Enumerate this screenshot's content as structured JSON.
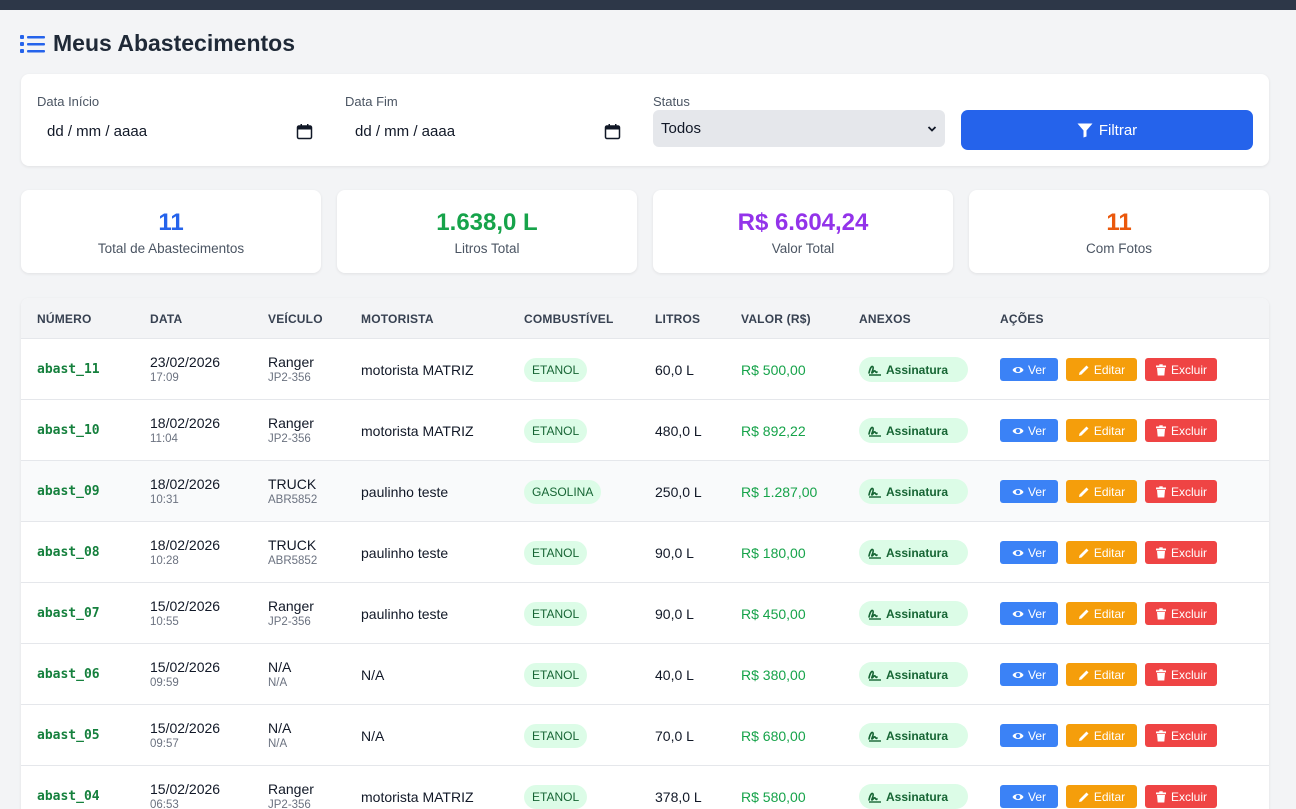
{
  "page": {
    "title": "Meus Abastecimentos"
  },
  "filters": {
    "start_label": "Data Início",
    "start_value": "dd / mm / aaaa",
    "end_label": "Data Fim",
    "end_value": "dd / mm / aaaa",
    "status_label": "Status",
    "status_value": "Todos",
    "filter_button": "Filtrar"
  },
  "stats": [
    {
      "value": "11",
      "label": "Total de Abastecimentos",
      "color": "#2563eb"
    },
    {
      "value": "1.638,0 L",
      "label": "Litros Total",
      "color": "#16a34a"
    },
    {
      "value": "R$ 6.604,24",
      "label": "Valor Total",
      "color": "#9333ea"
    },
    {
      "value": "11",
      "label": "Com Fotos",
      "color": "#ea580c"
    }
  ],
  "table": {
    "headers": [
      "NÚMERO",
      "DATA",
      "VEÍCULO",
      "MOTORISTA",
      "COMBUSTÍVEL",
      "LITROS",
      "VALOR (R$)",
      "ANEXOS",
      "AÇÕES"
    ],
    "rows": [
      {
        "numero": "abast_11",
        "data": "23/02/2026",
        "hora": "17:09",
        "veiculo": "Ranger",
        "placa": "JP2-356",
        "motorista": "motorista MATRIZ",
        "combustivel": "ETANOL",
        "litros": "60,0 L",
        "valor": "R$ 500,00",
        "anexo": "Assinatura",
        "ver": "Ver",
        "editar": "Editar",
        "excluir": "Excluir"
      },
      {
        "numero": "abast_10",
        "data": "18/02/2026",
        "hora": "11:04",
        "veiculo": "Ranger",
        "placa": "JP2-356",
        "motorista": "motorista MATRIZ",
        "combustivel": "ETANOL",
        "litros": "480,0 L",
        "valor": "R$ 892,22",
        "anexo": "Assinatura",
        "ver": "Ver",
        "editar": "Editar",
        "excluir": "Excluir"
      },
      {
        "numero": "abast_09",
        "data": "18/02/2026",
        "hora": "10:31",
        "veiculo": "TRUCK",
        "placa": "ABR5852",
        "motorista": "paulinho teste",
        "combustivel": "GASOLINA",
        "litros": "250,0 L",
        "valor": "R$ 1.287,00",
        "anexo": "Assinatura",
        "ver": "Ver",
        "editar": "Editar",
        "excluir": "Excluir"
      },
      {
        "numero": "abast_08",
        "data": "18/02/2026",
        "hora": "10:28",
        "veiculo": "TRUCK",
        "placa": "ABR5852",
        "motorista": "paulinho teste",
        "combustivel": "ETANOL",
        "litros": "90,0 L",
        "valor": "R$ 180,00",
        "anexo": "Assinatura",
        "ver": "Ver",
        "editar": "Editar",
        "excluir": "Excluir"
      },
      {
        "numero": "abast_07",
        "data": "15/02/2026",
        "hora": "10:55",
        "veiculo": "Ranger",
        "placa": "JP2-356",
        "motorista": "paulinho teste",
        "combustivel": "ETANOL",
        "litros": "90,0 L",
        "valor": "R$ 450,00",
        "anexo": "Assinatura",
        "ver": "Ver",
        "editar": "Editar",
        "excluir": "Excluir"
      },
      {
        "numero": "abast_06",
        "data": "15/02/2026",
        "hora": "09:59",
        "veiculo": "N/A",
        "placa": "N/A",
        "motorista": "N/A",
        "combustivel": "ETANOL",
        "litros": "40,0 L",
        "valor": "R$ 380,00",
        "anexo": "Assinatura",
        "ver": "Ver",
        "editar": "Editar",
        "excluir": "Excluir"
      },
      {
        "numero": "abast_05",
        "data": "15/02/2026",
        "hora": "09:57",
        "veiculo": "N/A",
        "placa": "N/A",
        "motorista": "N/A",
        "combustivel": "ETANOL",
        "litros": "70,0 L",
        "valor": "R$ 680,00",
        "anexo": "Assinatura",
        "ver": "Ver",
        "editar": "Editar",
        "excluir": "Excluir"
      },
      {
        "numero": "abast_04",
        "data": "15/02/2026",
        "hora": "06:53",
        "veiculo": "Ranger",
        "placa": "JP2-356",
        "motorista": "motorista MATRIZ",
        "combustivel": "ETANOL",
        "litros": "378,0 L",
        "valor": "R$ 580,00",
        "anexo": "Assinatura",
        "ver": "Ver",
        "editar": "Editar",
        "excluir": "Excluir"
      }
    ]
  }
}
